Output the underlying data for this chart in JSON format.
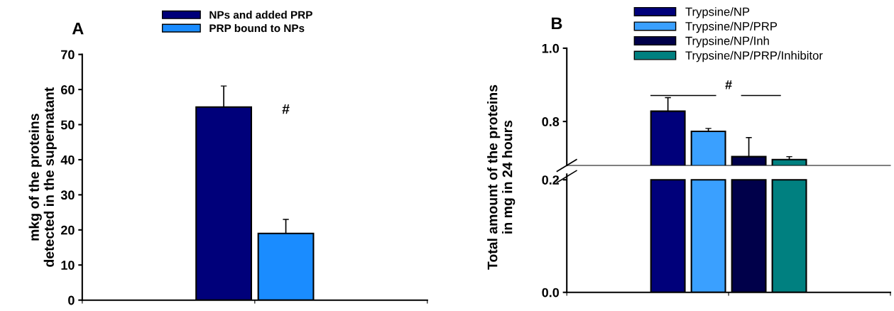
{
  "chart_data": [
    {
      "type": "bar",
      "title": "A",
      "ylabel": "mkg of the proteins\ndetected in the supernatant",
      "categories": [
        null
      ],
      "ylim": [
        0,
        70
      ],
      "yticks": [
        0,
        10,
        20,
        30,
        40,
        50,
        60,
        70
      ],
      "legend": "top",
      "grid": false,
      "annotations": [
        "#"
      ],
      "series": [
        {
          "name": "NPs and added PRP",
          "color": "#00007a",
          "values": [
            55
          ],
          "errors": [
            [
              55,
              61
            ]
          ]
        },
        {
          "name": "PRP bound to NPs",
          "color": "#1a8cff",
          "values": [
            19
          ],
          "errors": [
            [
              19,
              23
            ]
          ]
        }
      ]
    },
    {
      "type": "bar",
      "title": "B",
      "ylabel": "Total amount of the proteins\nin mg in 24 hours",
      "categories": [
        null
      ],
      "ylim": [
        0.68,
        1.0
      ],
      "yticks": [
        {
          "value": 0.8,
          "label": "0.8"
        },
        {
          "value": 1.0,
          "label": "1.0"
        }
      ],
      "legend": "top",
      "grid": false,
      "tick_labels": "y",
      "annotations": [
        "#"
      ],
      "series": [
        {
          "name": "Trypsine/NP",
          "color": "#00007a",
          "values": [
            0.828
          ],
          "errors": [
            [
              0.828,
              0.865
            ]
          ]
        },
        {
          "name": "Trypsine/NP/PRP",
          "color": "#3aa0ff",
          "values": [
            0.773
          ],
          "errors": [
            [
              0.773,
              0.781
            ]
          ]
        },
        {
          "name": "Trypsine/NP/Inh",
          "color": "#00004a",
          "values": [
            0.704
          ],
          "errors": [
            [
              0.704,
              0.756
            ]
          ]
        },
        {
          "name": "Trypsine/NP/PRP/Inhibitor",
          "color": "#008080",
          "values": [
            0.696
          ],
          "errors": [
            [
              0.696,
              0.704
            ]
          ]
        }
      ]
    },
    {
      "type": "bar",
      "categories": [
        null
      ],
      "ylim": [
        0,
        0.21
      ],
      "yticks": [
        {
          "value": 0.0,
          "label": "0.0"
        },
        {
          "value": 0.2,
          "label": "0.2"
        }
      ],
      "grid": false,
      "tick_labels": "y",
      "series": [
        {
          "color": "#00007a",
          "values": [
            0.2
          ]
        },
        {
          "color": "#3aa0ff",
          "values": [
            0.2
          ]
        },
        {
          "color": "#00004a",
          "values": [
            0.2
          ]
        },
        {
          "color": "#008080",
          "values": [
            0.2
          ]
        }
      ]
    }
  ]
}
